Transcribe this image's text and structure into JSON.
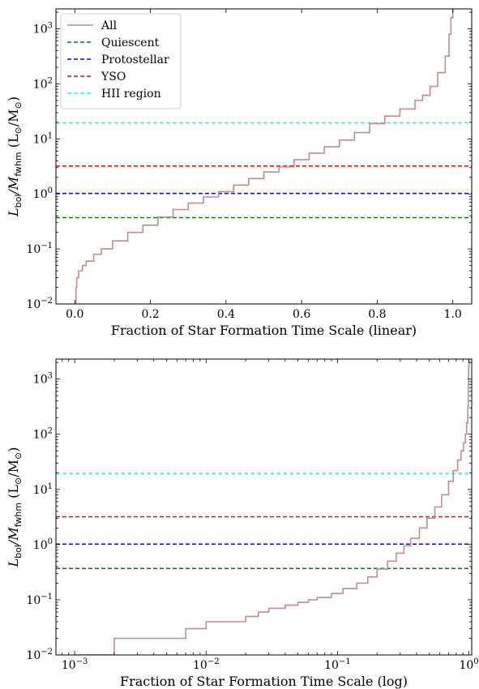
{
  "chart_data": [
    {
      "type": "line",
      "panel": "top",
      "xscale": "linear",
      "yscale": "log",
      "xlim": [
        -0.05,
        1.05
      ],
      "ylim": [
        0.01,
        2300
      ],
      "xlabel": "Fraction of Star Formation Time Scale (linear)",
      "ylabel_main": "L",
      "ylabel_main_sub": "bol",
      "ylabel_mid": "/M",
      "ylabel_mid_sub": "fwhm",
      "ylabel_unit_open": " (L",
      "ylabel_unit_sym1": "⊙",
      "ylabel_unit_mid": "/M",
      "ylabel_unit_sym2": "⊙",
      "ylabel_unit_close": ")",
      "xticks": [
        {
          "value": 0.0,
          "label": "0.0"
        },
        {
          "value": 0.2,
          "label": "0.2"
        },
        {
          "value": 0.4,
          "label": "0.4"
        },
        {
          "value": 0.6,
          "label": "0.6"
        },
        {
          "value": 0.8,
          "label": "0.8"
        },
        {
          "value": 1.0,
          "label": "1.0"
        }
      ],
      "yticks": [
        {
          "value": 0.01,
          "base": "10",
          "exp": "−2"
        },
        {
          "value": 0.1,
          "base": "10",
          "exp": "−1"
        },
        {
          "value": 1,
          "base": "10",
          "exp": "0"
        },
        {
          "value": 10,
          "base": "10",
          "exp": "1"
        },
        {
          "value": 100,
          "base": "10",
          "exp": "2"
        },
        {
          "value": 1000,
          "base": "10",
          "exp": "3"
        }
      ],
      "series": [
        {
          "name": "All",
          "color": "#bc8f8f",
          "style": "step",
          "x": [
            0.0,
            0.003,
            0.005,
            0.01,
            0.02,
            0.03,
            0.05,
            0.07,
            0.1,
            0.14,
            0.18,
            0.22,
            0.26,
            0.3,
            0.34,
            0.38,
            0.42,
            0.46,
            0.5,
            0.54,
            0.58,
            0.62,
            0.66,
            0.7,
            0.74,
            0.78,
            0.82,
            0.86,
            0.9,
            0.92,
            0.94,
            0.96,
            0.98,
            0.99,
            0.995,
            1.0
          ],
          "y": [
            0.01,
            0.02,
            0.03,
            0.04,
            0.05,
            0.06,
            0.08,
            0.1,
            0.14,
            0.2,
            0.27,
            0.38,
            0.52,
            0.68,
            0.88,
            1.1,
            1.45,
            1.9,
            2.5,
            3.1,
            4.2,
            5.5,
            7.2,
            9.5,
            13.0,
            19.0,
            26.0,
            35.0,
            50.0,
            62.0,
            90.0,
            160.0,
            320.0,
            800.0,
            1600.0,
            2300.0
          ]
        }
      ],
      "hlines": [
        {
          "name": "Quiescent",
          "y": 0.37,
          "color": "#008000"
        },
        {
          "name": "Protostellar",
          "y": 1.02,
          "color": "#0000ff"
        },
        {
          "name": "YSO",
          "y": 3.2,
          "color": "#ff0000"
        },
        {
          "name": "HII region",
          "y": 19.5,
          "color": "#00ffff"
        }
      ],
      "legend_position": "upper-left",
      "legend_entries": [
        {
          "label": "All",
          "color": "#bc8f8f",
          "dash": false
        },
        {
          "label": "Quiescent",
          "color": "#008000",
          "dash": true
        },
        {
          "label": "Protostellar",
          "color": "#0000ff",
          "dash": true
        },
        {
          "label": "YSO",
          "color": "#ff0000",
          "dash": true
        },
        {
          "label": "HII region",
          "color": "#00ffff",
          "dash": true
        }
      ]
    },
    {
      "type": "line",
      "panel": "bottom",
      "xscale": "log",
      "yscale": "log",
      "xlim": [
        0.00072,
        1.05
      ],
      "ylim": [
        0.01,
        2300
      ],
      "xlabel": "Fraction of Star Formation Time Scale (log)",
      "ylabel_main": "L",
      "ylabel_main_sub": "bol",
      "ylabel_mid": "/M",
      "ylabel_mid_sub": "fwhm",
      "ylabel_unit_open": " (L",
      "ylabel_unit_sym1": "⊙",
      "ylabel_unit_mid": "/M",
      "ylabel_unit_sym2": "⊙",
      "ylabel_unit_close": ")",
      "xticks": [
        {
          "value": 0.001,
          "base": "10",
          "exp": "−3"
        },
        {
          "value": 0.01,
          "base": "10",
          "exp": "−2"
        },
        {
          "value": 0.1,
          "base": "10",
          "exp": "−1"
        },
        {
          "value": 1,
          "base": "10",
          "exp": "0"
        }
      ],
      "yticks": [
        {
          "value": 0.01,
          "base": "10",
          "exp": "−2"
        },
        {
          "value": 0.1,
          "base": "10",
          "exp": "−1"
        },
        {
          "value": 1,
          "base": "10",
          "exp": "0"
        },
        {
          "value": 10,
          "base": "10",
          "exp": "1"
        },
        {
          "value": 100,
          "base": "10",
          "exp": "2"
        },
        {
          "value": 1000,
          "base": "10",
          "exp": "3"
        }
      ],
      "series": [
        {
          "name": "All",
          "color": "#bc8f8f",
          "style": "step",
          "x": [
            0.001,
            0.002,
            0.007,
            0.01,
            0.02,
            0.025,
            0.03,
            0.04,
            0.05,
            0.06,
            0.07,
            0.09,
            0.11,
            0.14,
            0.17,
            0.2,
            0.24,
            0.28,
            0.32,
            0.36,
            0.42,
            0.48,
            0.55,
            0.62,
            0.7,
            0.76,
            0.82,
            0.87,
            0.91,
            0.94,
            0.96,
            0.98,
            0.99,
            0.995,
            1.0
          ],
          "y": [
            0.01,
            0.02,
            0.03,
            0.04,
            0.05,
            0.06,
            0.07,
            0.08,
            0.09,
            0.1,
            0.11,
            0.13,
            0.16,
            0.2,
            0.26,
            0.36,
            0.5,
            0.7,
            0.95,
            1.3,
            2.0,
            3.0,
            4.8,
            8.0,
            14.0,
            22.0,
            34.0,
            50.0,
            70.0,
            100.0,
            160.0,
            320.0,
            800.0,
            1600.0,
            2300.0
          ]
        }
      ],
      "hlines": [
        {
          "name": "Quiescent",
          "y": 0.37,
          "color": "#008000"
        },
        {
          "name": "Protostellar",
          "y": 1.02,
          "color": "#0000ff"
        },
        {
          "name": "YSO",
          "y": 3.2,
          "color": "#ff0000"
        },
        {
          "name": "HII region",
          "y": 19.5,
          "color": "#00ffff"
        }
      ]
    }
  ]
}
